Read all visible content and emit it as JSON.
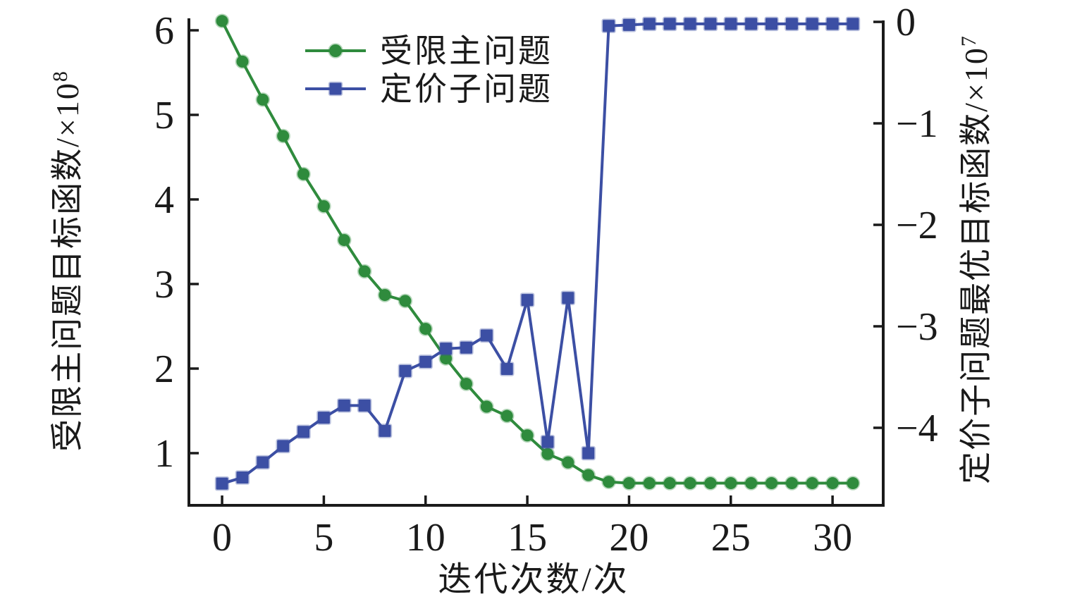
{
  "figure": {
    "background": "#ffffff",
    "axis_color": "#1a1a1a"
  },
  "chart_data": {
    "type": "line",
    "title": "",
    "xlabel": "迭代次数/次",
    "x": [
      0,
      1,
      2,
      3,
      4,
      5,
      6,
      7,
      8,
      9,
      10,
      11,
      12,
      13,
      14,
      15,
      16,
      17,
      18,
      19,
      20,
      21,
      22,
      23,
      24,
      25,
      26,
      27,
      28,
      29,
      30,
      31
    ],
    "x_ticks": {
      "values": [
        0,
        5,
        10,
        15,
        20,
        25,
        30
      ],
      "labels": [
        "0",
        "5",
        "10",
        "15",
        "20",
        "25",
        "30"
      ]
    },
    "xlim": [
      -1.63,
      32.49
    ],
    "grid": false,
    "axes": {
      "left": {
        "label_main": "受限主问题目标函数/×10",
        "label_sup": "8",
        "tick_values": [
          6,
          5,
          4,
          3,
          2,
          1
        ],
        "tick_labels": [
          "6",
          "5",
          "4",
          "3",
          "2",
          "1"
        ],
        "lim": [
          0.383,
          6.15
        ]
      },
      "right": {
        "label_main": "定价子问题最优目标函数/×10",
        "label_sup": "7",
        "tick_values": [
          0,
          -1,
          -2,
          -3,
          -4
        ],
        "tick_labels": [
          "0",
          "−1",
          "−2",
          "−3",
          "−4"
        ],
        "lim": [
          -4.764,
          0.042
        ]
      }
    },
    "series": [
      {
        "name": "受限主问题",
        "axis": "left",
        "color": "#2f8b3d",
        "marker": "circle",
        "values": [
          6.11,
          5.63,
          5.18,
          4.75,
          4.3,
          3.92,
          3.52,
          3.15,
          2.87,
          2.8,
          2.47,
          2.12,
          1.82,
          1.55,
          1.44,
          1.21,
          0.99,
          0.89,
          0.74,
          0.66,
          0.645,
          0.645,
          0.645,
          0.645,
          0.645,
          0.645,
          0.645,
          0.645,
          0.645,
          0.645,
          0.645,
          0.645
        ]
      },
      {
        "name": "定价子问题",
        "axis": "right",
        "color": "#3c4fa4",
        "marker": "square",
        "values": [
          -4.55,
          -4.49,
          -4.34,
          -4.18,
          -4.04,
          -3.9,
          -3.78,
          -3.78,
          -4.03,
          -3.44,
          -3.35,
          -3.22,
          -3.21,
          -3.09,
          -3.42,
          -2.74,
          -4.14,
          -2.72,
          -4.25,
          -0.04,
          -0.03,
          -0.02,
          -0.02,
          -0.02,
          -0.02,
          -0.02,
          -0.02,
          -0.02,
          -0.02,
          -0.02,
          -0.02,
          -0.02
        ]
      }
    ],
    "legend": {
      "entries": [
        "受限主问题",
        "定价子问题"
      ],
      "position": "upper left inside"
    }
  }
}
